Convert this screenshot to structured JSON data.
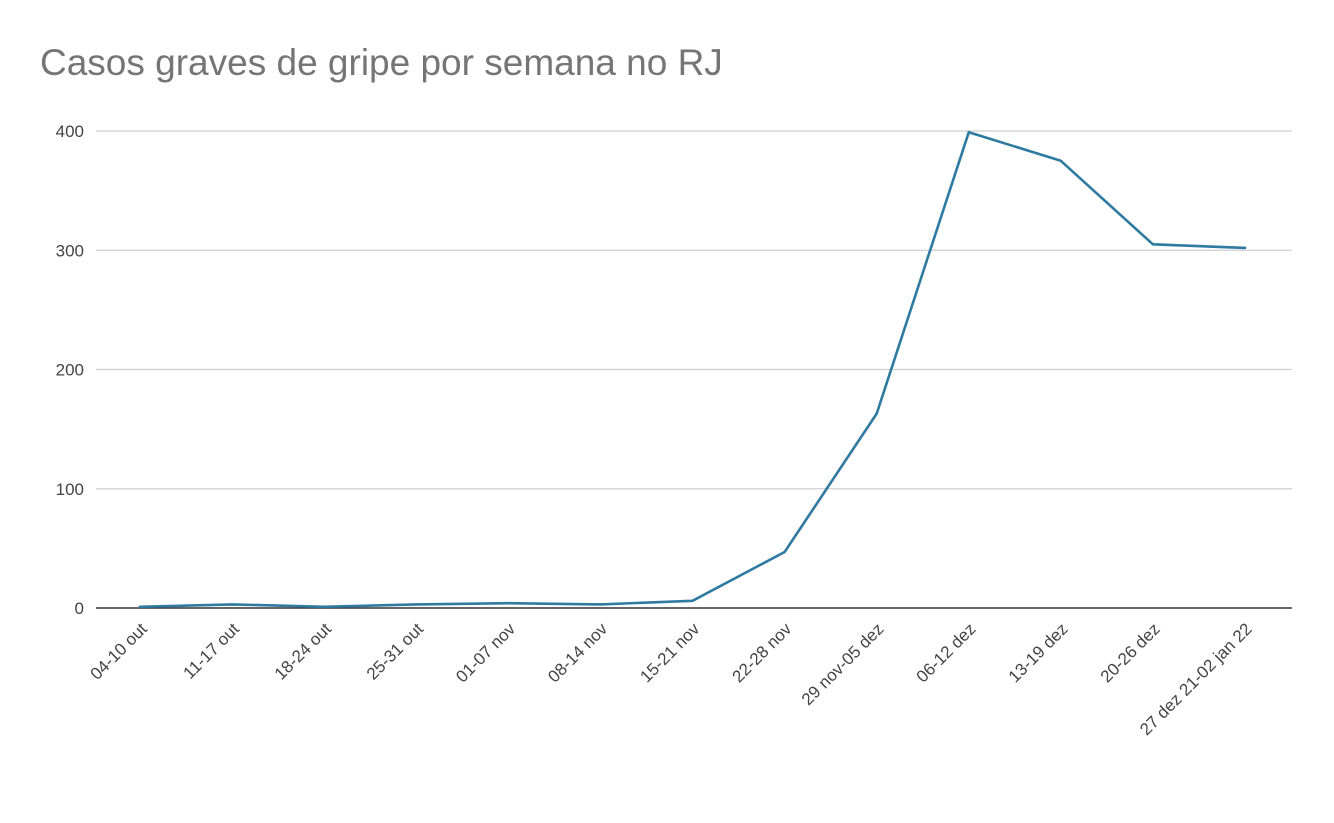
{
  "chart_data": {
    "type": "line",
    "title": "Casos graves de gripe por semana no RJ",
    "xlabel": "",
    "ylabel": "",
    "ylim": [
      0,
      400
    ],
    "yticks": [
      0,
      100,
      200,
      300,
      400
    ],
    "ytick_labels": [
      "0",
      "100",
      "200",
      "300",
      "400"
    ],
    "grid": true,
    "legend": "none",
    "categories": [
      "04-10 out",
      "11-17 out",
      "18-24 out",
      "25-31 out",
      "01-07 nov",
      "08-14 nov",
      "15-21 nov",
      "22-28 nov",
      "29 nov-05 dez",
      "06-12 dez",
      "13-19 dez",
      "20-26 dez",
      "27 dez 21-02 jan 22"
    ],
    "series": [
      {
        "values": [
          1,
          3,
          1,
          3,
          4,
          3,
          6,
          47,
          163,
          399,
          375,
          305,
          302
        ],
        "color": "#2e7aa0"
      }
    ]
  }
}
